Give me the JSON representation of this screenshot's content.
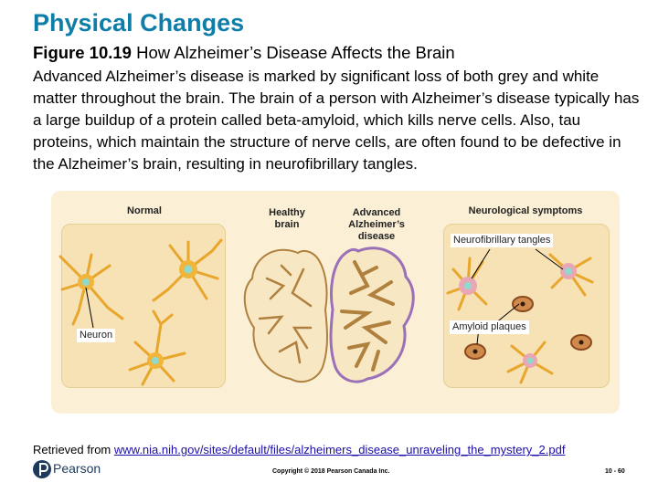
{
  "slide": {
    "title": "Physical Changes",
    "figure_number": "Figure 10.19",
    "figure_title": "How Alzheimer’s Disease Affects the Brain",
    "body": "Advanced Alzheimer’s disease is marked by significant loss of both grey and white matter throughout the brain. The brain of a person with Alzheimer’s disease typically has a large buildup of a protein called beta-amyloid, which kills nerve cells. Also, tau proteins, which maintain the structure of nerve cells, are often found to be defective in the Alzheimer’s brain, resulting in neurofibrillary tangles."
  },
  "figure": {
    "label_normal": "Normal",
    "label_healthy_line1": "Healthy",
    "label_healthy_line2": "brain",
    "label_advanced_line1": "Advanced",
    "label_advanced_line2": "Alzheimer’s",
    "label_advanced_line3": "disease",
    "label_symptoms": "Neurological symptoms",
    "callout_neuron": "Neuron",
    "callout_tangles": "Neurofibrillary tangles",
    "callout_plaques": "Amyloid plaques"
  },
  "footer": {
    "source_prefix": "Retrieved from ",
    "source_link": "www.nia.nih.gov/sites/default/files/alzheimers_disease_unraveling_the_mystery_2.pdf",
    "brand": "Pearson",
    "copyright": "Copyright © 2018 Pearson Canada Inc.",
    "slide_number": "10 - 60"
  },
  "colors": {
    "title": "#0e7ea8",
    "figure_bg": "#fbf0d6",
    "panel_bg": "#f6e2b4",
    "neuron": "#f0b53a",
    "nucleus": "#8fd9cf",
    "brain_tissue": "#f7e7c2",
    "brain_outline": "#b0803f",
    "link": "#1a0dab",
    "brand": "#1d3a5c"
  }
}
